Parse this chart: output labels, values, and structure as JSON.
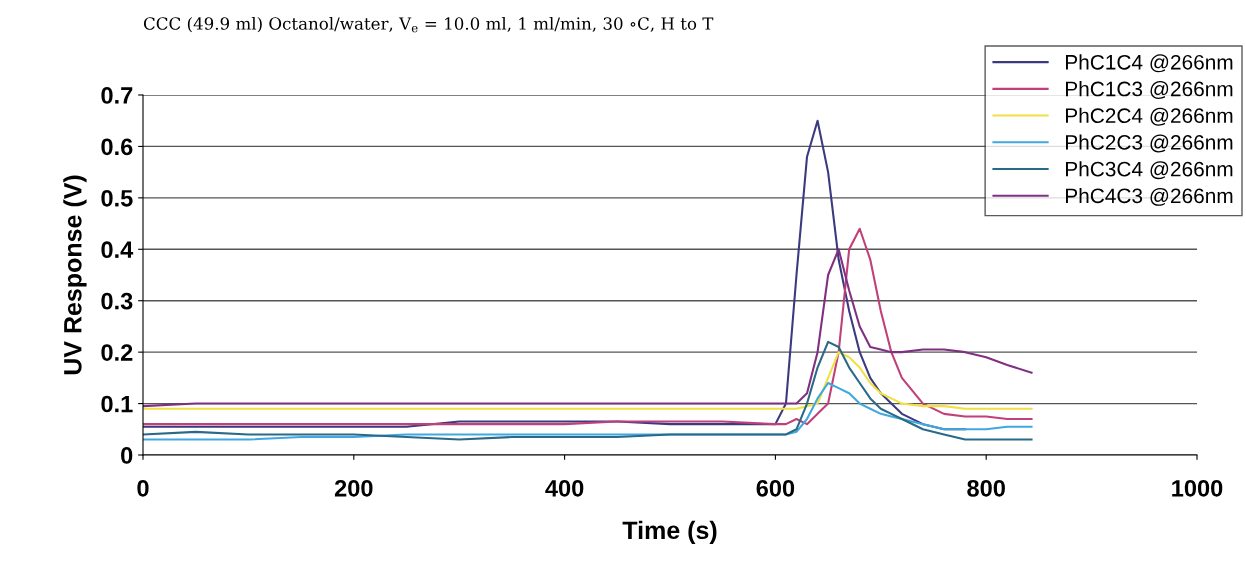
{
  "chart_data": {
    "type": "line",
    "title": "CCC (49.9 ml) Octanol/water, V$_{e}$ = 10.0 ml, 1 ml/min, 30 ∘C, H to T",
    "xlabel": "Time (s)",
    "ylabel": "UV Response (V)",
    "x": [
      0,
      50,
      100,
      150,
      200,
      250,
      300,
      350,
      400,
      450,
      500,
      550,
      600,
      610,
      620,
      630,
      640,
      650,
      660,
      670,
      680,
      690,
      700,
      710,
      720,
      740,
      760,
      780,
      800,
      820,
      843
    ],
    "series": [
      {
        "name": "PhC1C4 @266nm",
        "color": "#3a3a80",
        "values": [
          0.055,
          0.055,
          0.055,
          0.055,
          0.055,
          0.055,
          0.065,
          0.065,
          0.065,
          0.065,
          0.06,
          0.06,
          0.06,
          0.1,
          0.35,
          0.58,
          0.65,
          0.55,
          0.38,
          0.28,
          0.2,
          0.15,
          0.12,
          0.1,
          0.08,
          0.06,
          0.05,
          0.05,
          null,
          null,
          null
        ]
      },
      {
        "name": "PhC1C3 @266nm",
        "color": "#c0407a",
        "values": [
          0.06,
          0.06,
          0.06,
          0.06,
          0.06,
          0.06,
          0.06,
          0.06,
          0.06,
          0.065,
          0.065,
          0.065,
          0.06,
          0.06,
          0.07,
          0.06,
          0.08,
          0.1,
          0.2,
          0.4,
          0.44,
          0.38,
          0.28,
          0.2,
          0.15,
          0.1,
          0.08,
          0.075,
          0.075,
          0.07,
          0.07
        ]
      },
      {
        "name": "PhC2C4 @266nm",
        "color": "#f0e040",
        "values": [
          0.09,
          0.09,
          0.09,
          0.09,
          0.09,
          0.09,
          0.09,
          0.09,
          0.09,
          0.09,
          0.09,
          0.09,
          0.09,
          0.09,
          0.09,
          0.095,
          0.1,
          0.15,
          0.2,
          0.19,
          0.17,
          0.14,
          0.12,
          0.11,
          0.1,
          0.095,
          0.095,
          0.09,
          0.09,
          0.09,
          0.09
        ]
      },
      {
        "name": "PhC2C3 @266nm",
        "color": "#40a8e0",
        "values": [
          0.03,
          0.03,
          0.03,
          0.035,
          0.035,
          0.04,
          0.04,
          0.04,
          0.04,
          0.04,
          0.04,
          0.04,
          0.04,
          0.04,
          0.045,
          0.07,
          0.11,
          0.14,
          0.13,
          0.12,
          0.1,
          0.09,
          0.08,
          0.075,
          0.07,
          0.06,
          0.05,
          0.05,
          0.05,
          0.055,
          0.055
        ]
      },
      {
        "name": "PhC3C4 @266nm",
        "color": "#2a6a88",
        "values": [
          0.04,
          0.045,
          0.04,
          0.04,
          0.04,
          0.035,
          0.03,
          0.035,
          0.035,
          0.035,
          0.04,
          0.04,
          0.04,
          0.04,
          0.05,
          0.1,
          0.17,
          0.22,
          0.21,
          0.17,
          0.14,
          0.11,
          0.09,
          0.08,
          0.07,
          0.05,
          0.04,
          0.03,
          0.03,
          0.03,
          0.03
        ]
      },
      {
        "name": "PhC4C3 @266nm",
        "color": "#803080",
        "values": [
          0.095,
          0.1,
          0.1,
          0.1,
          0.1,
          0.1,
          0.1,
          0.1,
          0.1,
          0.1,
          0.1,
          0.1,
          0.1,
          0.1,
          0.1,
          0.12,
          0.2,
          0.35,
          0.4,
          0.32,
          0.25,
          0.21,
          0.205,
          0.2,
          0.2,
          0.205,
          0.205,
          0.2,
          0.19,
          0.175,
          0.16
        ]
      }
    ],
    "xlim": [
      0,
      1000
    ],
    "xticks": [
      0,
      200,
      400,
      600,
      800,
      1000
    ],
    "ylim": [
      0,
      0.7
    ],
    "yticks": [
      0,
      0.1,
      0.2,
      0.3,
      0.4,
      0.5,
      0.6,
      0.7
    ],
    "grid": "y",
    "legend": "top right",
    "marker": "none",
    "line_style": "solid"
  }
}
